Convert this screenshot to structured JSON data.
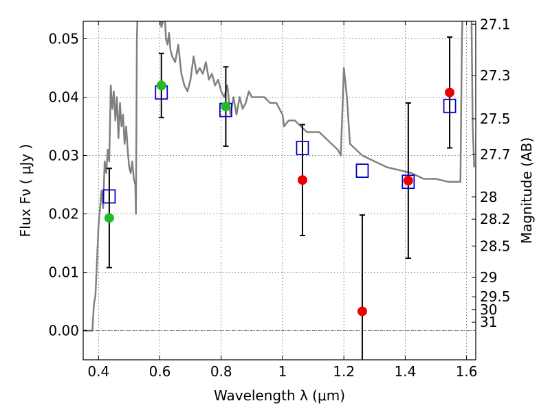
{
  "chart_data": {
    "type": "scatter",
    "title": "",
    "xlabel": "Wavelength  λ (μm)",
    "ylabel": "Flux  Fν  ( μJy )",
    "y2label": "Magnitude (AB)",
    "xlim": [
      0.35,
      1.63
    ],
    "ylim": [
      -0.005,
      0.053
    ],
    "xticks": [
      0.4,
      0.6,
      0.8,
      1.0,
      1.2,
      1.4,
      1.6
    ],
    "xtick_labels": [
      "0.4",
      "0.6",
      "0.8",
      "1",
      "1.2",
      "1.4",
      "1.6"
    ],
    "yticks": [
      0.0,
      0.01,
      0.02,
      0.03,
      0.04,
      0.05
    ],
    "ytick_labels": [
      "0.00",
      "0.01",
      "0.02",
      "0.03",
      "0.04",
      "0.05"
    ],
    "y2ticks": [
      {
        "label": "27.1",
        "flux": 0.0525
      },
      {
        "label": "27.3",
        "flux": 0.0437
      },
      {
        "label": "27.5",
        "flux": 0.0363
      },
      {
        "label": "27.7",
        "flux": 0.0302
      },
      {
        "label": "28",
        "flux": 0.0229
      },
      {
        "label": "28.2",
        "flux": 0.0191
      },
      {
        "label": "28.5",
        "flux": 0.0145
      },
      {
        "label": "29",
        "flux": 0.0091
      },
      {
        "label": "29.5",
        "flux": 0.0058
      },
      {
        "label": "30",
        "flux": 0.0036
      },
      {
        "label": "31",
        "flux": 0.00145
      }
    ],
    "grid": true,
    "colors": {
      "model": "#808080",
      "model_points": "#0000cc",
      "observed_green": "#22bb22",
      "observed_red": "#ee0000",
      "errorbar": "#000000"
    },
    "model_sed": {
      "x": [
        0.35,
        0.38,
        0.385,
        0.39,
        0.395,
        0.4,
        0.41,
        0.415,
        0.42,
        0.425,
        0.43,
        0.435,
        0.44,
        0.445,
        0.45,
        0.455,
        0.46,
        0.465,
        0.47,
        0.475,
        0.48,
        0.485,
        0.49,
        0.495,
        0.5,
        0.505,
        0.51,
        0.515,
        0.52,
        0.522,
        0.525,
        0.53,
        0.535,
        0.54,
        0.55,
        0.56,
        0.57,
        0.58,
        0.59,
        0.6,
        0.605,
        0.61,
        0.615,
        0.62,
        0.625,
        0.63,
        0.635,
        0.64,
        0.65,
        0.66,
        0.67,
        0.68,
        0.69,
        0.7,
        0.71,
        0.72,
        0.73,
        0.74,
        0.75,
        0.76,
        0.77,
        0.78,
        0.79,
        0.8,
        0.81,
        0.82,
        0.83,
        0.84,
        0.85,
        0.86,
        0.87,
        0.88,
        0.89,
        0.9,
        0.92,
        0.94,
        0.96,
        0.98,
        1.0,
        1.005,
        1.02,
        1.04,
        1.06,
        1.08,
        1.1,
        1.12,
        1.14,
        1.16,
        1.18,
        1.19,
        1.2,
        1.21,
        1.22,
        1.24,
        1.26,
        1.3,
        1.34,
        1.38,
        1.42,
        1.46,
        1.5,
        1.54,
        1.58,
        1.585,
        1.59,
        1.6,
        1.61,
        1.615,
        1.62,
        1.625
      ],
      "y": [
        0.0,
        0.0,
        0.0045,
        0.006,
        0.012,
        0.018,
        0.024,
        0.021,
        0.029,
        0.027,
        0.031,
        0.029,
        0.042,
        0.038,
        0.041,
        0.036,
        0.04,
        0.033,
        0.039,
        0.035,
        0.037,
        0.032,
        0.035,
        0.031,
        0.028,
        0.027,
        0.029,
        0.026,
        0.025,
        0.02,
        0.05,
        0.06,
        0.07,
        0.075,
        0.072,
        0.068,
        0.064,
        0.06,
        0.057,
        0.054,
        0.052,
        0.053,
        0.055,
        0.05,
        0.049,
        0.051,
        0.048,
        0.047,
        0.046,
        0.049,
        0.044,
        0.042,
        0.041,
        0.043,
        0.047,
        0.044,
        0.045,
        0.044,
        0.046,
        0.043,
        0.044,
        0.042,
        0.043,
        0.041,
        0.04,
        0.042,
        0.037,
        0.04,
        0.037,
        0.04,
        0.038,
        0.039,
        0.041,
        0.04,
        0.04,
        0.04,
        0.039,
        0.039,
        0.037,
        0.035,
        0.036,
        0.036,
        0.035,
        0.034,
        0.034,
        0.034,
        0.033,
        0.032,
        0.031,
        0.03,
        0.045,
        0.04,
        0.032,
        0.031,
        0.03,
        0.029,
        0.028,
        0.0275,
        0.027,
        0.026,
        0.026,
        0.0255,
        0.0255,
        0.05,
        0.06,
        0.06,
        0.06,
        0.06,
        0.035,
        0.028
      ]
    },
    "series": [
      {
        "name": "",
        "marker": "open-square",
        "color": "#0000cc",
        "x": [
          0.435,
          0.605,
          0.815,
          1.065,
          1.26,
          1.41,
          1.545
        ],
        "y": [
          0.023,
          0.0408,
          0.0378,
          0.0313,
          0.0274,
          0.0255,
          0.0385
        ]
      },
      {
        "name": "",
        "marker": "filled-circle",
        "color": "#22bb22",
        "x": [
          0.435,
          0.605,
          0.815
        ],
        "y": [
          0.0193,
          0.042,
          0.0384
        ],
        "err": [
          0.0085,
          0.0055,
          0.0068
        ]
      },
      {
        "name": "",
        "marker": "filled-circle",
        "color": "#ee0000",
        "x": [
          1.065,
          1.26,
          1.41,
          1.545
        ],
        "y": [
          0.0258,
          0.0033,
          0.0257,
          0.0408
        ],
        "err": [
          0.0095,
          0.0165,
          0.0133,
          0.0095
        ]
      }
    ]
  }
}
